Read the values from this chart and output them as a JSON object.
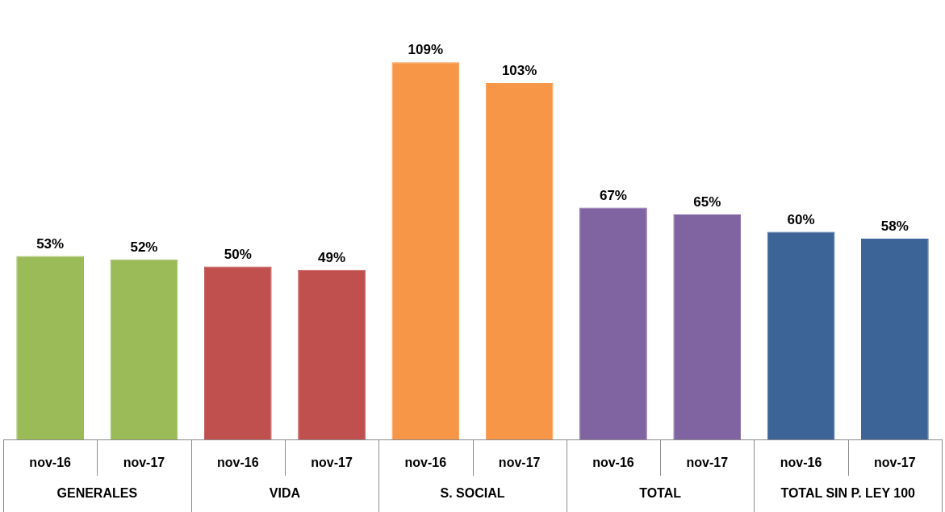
{
  "chart_data": {
    "type": "bar",
    "categories": [
      "nov-16",
      "nov-17",
      "nov-16",
      "nov-17",
      "nov-16",
      "nov-17",
      "nov-16",
      "nov-17",
      "nov-16",
      "nov-17"
    ],
    "values": [
      53,
      52,
      50,
      49,
      109,
      103,
      67,
      65,
      60,
      58
    ],
    "value_labels": [
      "53%",
      "52%",
      "50%",
      "49%",
      "109%",
      "103%",
      "67%",
      "65%",
      "60%",
      "58%"
    ],
    "colors": [
      "#9bbb59",
      "#9bbb59",
      "#c0504d",
      "#c0504d",
      "#f79646",
      "#f79646",
      "#8064a2",
      "#8064a2",
      "#3c6496",
      "#3c6496"
    ],
    "annotations": [
      "GENERALES",
      "VIDA",
      "S. SOCIAL",
      "TOTAL",
      "TOTAL SIN P. LEY 100"
    ],
    "tick_labels": "x",
    "grid": false,
    "legend": false
  }
}
